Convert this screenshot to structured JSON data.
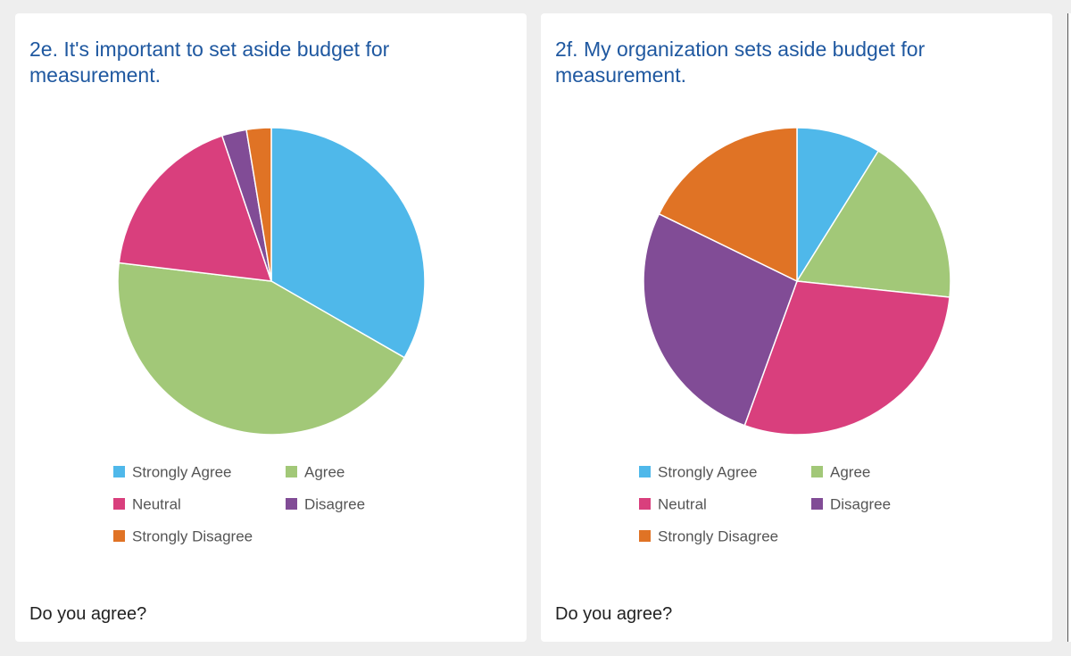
{
  "chart_data": [
    {
      "type": "pie",
      "title": "2e. It's important to set aside budget for measurement.",
      "caption": "Do you agree?",
      "categories": [
        "Strongly Agree",
        "Agree",
        "Neutral",
        "Disagree",
        "Strongly Disagree"
      ],
      "values": [
        33.3,
        43.6,
        17.9,
        2.6,
        2.6
      ],
      "colors": [
        "#4fb8ea",
        "#a2c878",
        "#d93f7d",
        "#814c96",
        "#e07325"
      ]
    },
    {
      "type": "pie",
      "title": "2f. My organization sets aside budget for measurement.",
      "caption": "Do you agree?",
      "categories": [
        "Strongly Agree",
        "Agree",
        "Neutral",
        "Disagree",
        "Strongly Disagree"
      ],
      "values": [
        8.9,
        17.8,
        28.9,
        26.7,
        17.8
      ],
      "colors": [
        "#4fb8ea",
        "#a2c878",
        "#d93f7d",
        "#814c96",
        "#e07325"
      ]
    }
  ]
}
